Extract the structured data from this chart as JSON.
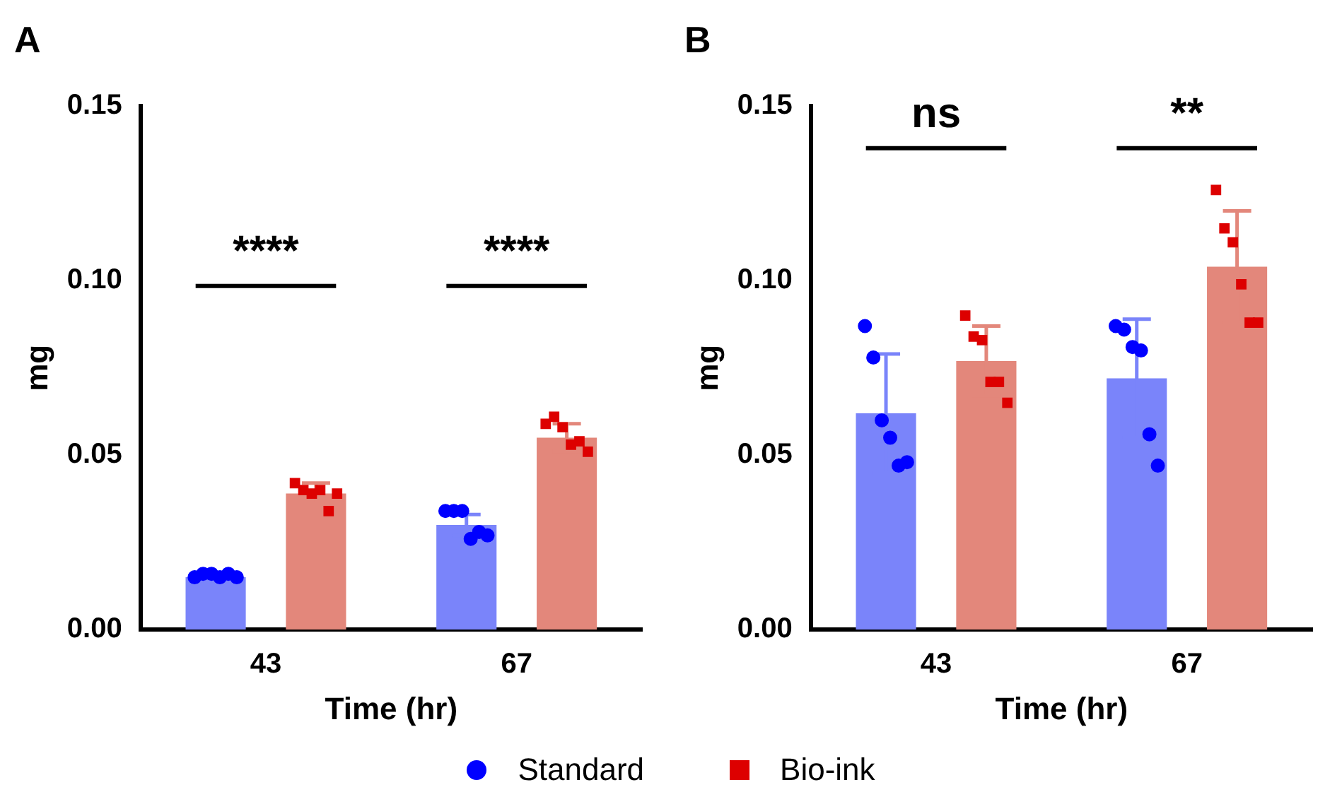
{
  "chart_data": [
    {
      "type": "bar",
      "title": "A",
      "xlabel": "Time (hr)",
      "ylabel": "mg",
      "categories": [
        "43",
        "67"
      ],
      "ylim": [
        0,
        0.15
      ],
      "yticks": [
        {
          "value": 0,
          "label": "0.00"
        },
        {
          "value": 0.05,
          "label": "0.05"
        },
        {
          "value": 0.1,
          "label": "0.10"
        },
        {
          "value": 0.15,
          "label": "0.15"
        }
      ],
      "grid": false,
      "legend": "bottom",
      "series": [
        {
          "type": "bar",
          "color": "#7a84fa",
          "values": [
            0.015,
            0.03
          ],
          "errors": [
            0.001,
            0.003
          ]
        },
        {
          "type": "bar",
          "color": "#e3877b",
          "values": [
            0.039,
            0.055
          ],
          "errors": [
            0.003,
            0.004
          ]
        },
        {
          "type": "scatter",
          "name": "Standard",
          "color": "#0000ff",
          "marker": "circle",
          "x": [
            "43",
            "43",
            "43",
            "43",
            "43",
            "43",
            "67",
            "67",
            "67",
            "67",
            "67",
            "67"
          ],
          "values": [
            0.015,
            0.016,
            0.016,
            0.015,
            0.016,
            0.015,
            0.034,
            0.034,
            0.034,
            0.026,
            0.028,
            0.027
          ]
        },
        {
          "type": "scatter",
          "name": "Bio-ink",
          "color": "#dd0000",
          "marker": "square",
          "x": [
            "43",
            "43",
            "43",
            "43",
            "43",
            "43",
            "67",
            "67",
            "67",
            "67",
            "67",
            "67"
          ],
          "values": [
            0.042,
            0.04,
            0.039,
            0.04,
            0.034,
            0.039,
            0.059,
            0.061,
            0.058,
            0.053,
            0.054,
            0.051
          ]
        }
      ],
      "annotations": [
        "****",
        "****"
      ]
    },
    {
      "type": "bar",
      "title": "B",
      "xlabel": "Time (hr)",
      "ylabel": "mg",
      "categories": [
        "43",
        "67"
      ],
      "ylim": [
        0,
        0.15
      ],
      "yticks": [
        {
          "value": 0,
          "label": "0.00"
        },
        {
          "value": 0.05,
          "label": "0.05"
        },
        {
          "value": 0.1,
          "label": "0.10"
        },
        {
          "value": 0.15,
          "label": "0.15"
        }
      ],
      "grid": false,
      "series": [
        {
          "type": "bar",
          "color": "#7a84fa",
          "values": [
            0.062,
            0.072
          ],
          "errors": [
            0.017,
            0.017
          ]
        },
        {
          "type": "bar",
          "color": "#e3877b",
          "values": [
            0.077,
            0.104
          ],
          "errors": [
            0.01,
            0.016
          ]
        },
        {
          "type": "scatter",
          "color": "#0000ff",
          "marker": "circle",
          "x": [
            "43",
            "43",
            "43",
            "43",
            "43",
            "43",
            "67",
            "67",
            "67",
            "67",
            "67",
            "67"
          ],
          "values": [
            0.087,
            0.078,
            0.06,
            0.055,
            0.047,
            0.048,
            0.087,
            0.086,
            0.081,
            0.08,
            0.056,
            0.047
          ]
        },
        {
          "type": "scatter",
          "color": "#dd0000",
          "marker": "square",
          "x": [
            "43",
            "43",
            "43",
            "43",
            "43",
            "43",
            "67",
            "67",
            "67",
            "67",
            "67",
            "67"
          ],
          "values": [
            0.09,
            0.084,
            0.083,
            0.071,
            0.071,
            0.065,
            0.126,
            0.115,
            0.111,
            0.099,
            0.088,
            0.088
          ]
        }
      ],
      "annotations": [
        "ns",
        "**"
      ]
    }
  ]
}
